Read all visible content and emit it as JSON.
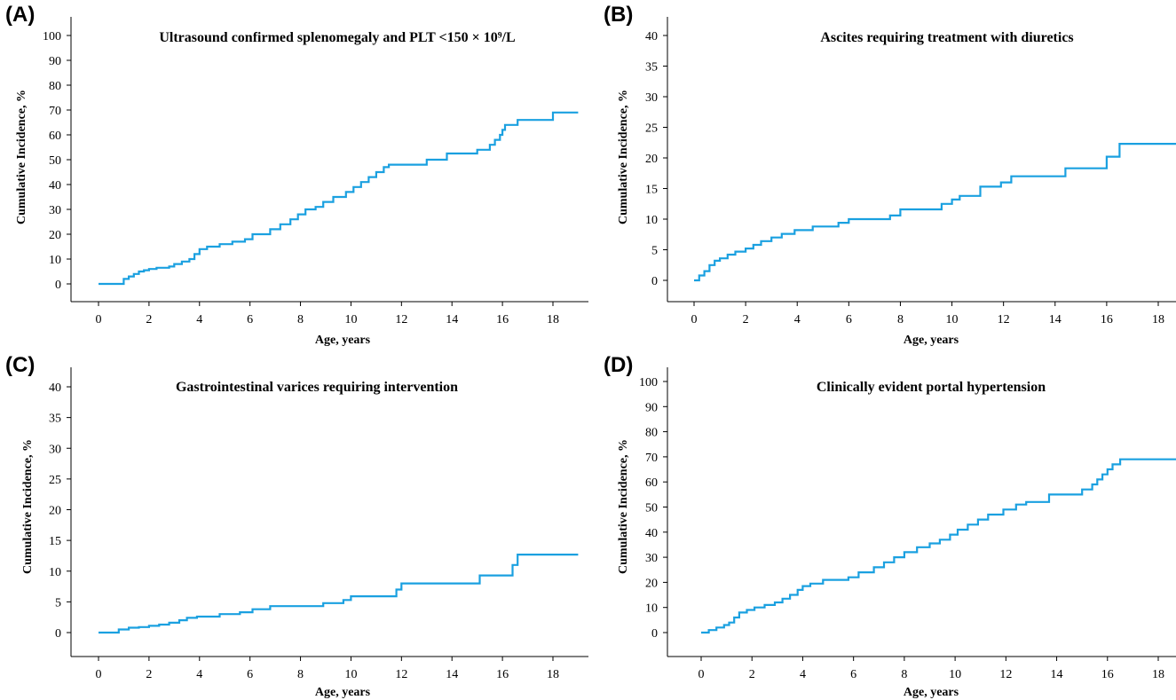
{
  "colors": {
    "series": "#1AA0E0",
    "axis": "#000000"
  },
  "chart_data": [
    {
      "panel": "(A)",
      "type": "line",
      "step": true,
      "title": "Ultrasound confirmed splenomegaly and PLT <150 × 10⁹/L",
      "xlabel": "Age, years",
      "ylabel": "Cumulative Incidence, %",
      "xlim": [
        -1,
        19
      ],
      "ylim": [
        0,
        100
      ],
      "xticks": [
        0,
        2,
        4,
        6,
        8,
        10,
        12,
        14,
        16,
        18
      ],
      "yticks": [
        0,
        10,
        20,
        30,
        40,
        50,
        60,
        70,
        80,
        90,
        100
      ],
      "grid": false,
      "series": [
        {
          "x": [
            0,
            1.0,
            1.2,
            1.4,
            1.6,
            1.8,
            2.0,
            2.3,
            2.8,
            3.0,
            3.3,
            3.6,
            3.8,
            4.0,
            4.3,
            4.8,
            5.3,
            5.8,
            6.1,
            6.8,
            7.2,
            7.6,
            7.9,
            8.2,
            8.6,
            8.9,
            9.3,
            9.8,
            10.1,
            10.4,
            10.7,
            11.0,
            11.3,
            11.5,
            13.0,
            13.8,
            15.0,
            15.5,
            15.7,
            15.9,
            16.0,
            16.1,
            16.3,
            16.6,
            18.0,
            19.0
          ],
          "y": [
            0,
            2,
            3,
            4,
            5,
            5.5,
            6,
            6.5,
            7,
            8,
            9,
            10,
            12,
            14,
            15,
            16,
            17,
            18,
            20,
            22,
            24,
            26,
            28,
            30,
            31,
            33,
            35,
            37,
            39,
            41,
            43,
            45,
            47,
            48,
            50,
            52.5,
            54,
            56,
            58,
            60,
            62,
            64,
            64,
            66,
            69,
            69
          ]
        }
      ]
    },
    {
      "panel": "(B)",
      "type": "line",
      "step": true,
      "title": "Ascites requiring treatment with diuretics",
      "xlabel": "Age, years",
      "ylabel": "Cumulative Incidence, %",
      "xlim": [
        -1,
        19
      ],
      "ylim": [
        0,
        40
      ],
      "xticks": [
        0,
        2,
        4,
        6,
        8,
        10,
        12,
        14,
        16,
        18
      ],
      "yticks": [
        0,
        5,
        10,
        15,
        20,
        25,
        30,
        35,
        40
      ],
      "grid": false,
      "series": [
        {
          "x": [
            0,
            0.2,
            0.4,
            0.6,
            0.8,
            1.0,
            1.3,
            1.6,
            2.0,
            2.3,
            2.6,
            3.0,
            3.4,
            3.9,
            4.6,
            5.6,
            6.0,
            7.6,
            8.0,
            9.6,
            10.0,
            10.3,
            11.1,
            11.9,
            12.3,
            14.4,
            16.0,
            16.5,
            19.0
          ],
          "y": [
            0,
            0.8,
            1.5,
            2.5,
            3.2,
            3.6,
            4.2,
            4.7,
            5.2,
            5.8,
            6.4,
            7.0,
            7.6,
            8.2,
            8.8,
            9.4,
            10.0,
            10.6,
            11.6,
            12.5,
            13.2,
            13.8,
            15.3,
            16.0,
            17.0,
            18.3,
            20.2,
            22.3,
            22.3
          ]
        }
      ]
    },
    {
      "panel": "(C)",
      "type": "line",
      "step": true,
      "title": "Gastrointestinal varices requiring intervention",
      "xlabel": "Age, years",
      "ylabel": "Cumulative Incidence, %",
      "xlim": [
        -1,
        19
      ],
      "ylim": [
        0,
        40
      ],
      "xticks": [
        0,
        2,
        4,
        6,
        8,
        10,
        12,
        14,
        16,
        18
      ],
      "yticks": [
        0,
        5,
        10,
        15,
        20,
        25,
        30,
        35,
        40
      ],
      "grid": false,
      "series": [
        {
          "x": [
            0,
            0.8,
            1.2,
            1.6,
            2.0,
            2.4,
            2.8,
            3.2,
            3.5,
            3.9,
            4.8,
            5.6,
            6.1,
            6.8,
            8.9,
            9.7,
            10.0,
            11.8,
            12.0,
            15.1,
            16.4,
            16.6,
            19.0
          ],
          "y": [
            0,
            0.5,
            0.8,
            0.9,
            1.1,
            1.3,
            1.6,
            2.0,
            2.4,
            2.6,
            3.0,
            3.3,
            3.8,
            4.3,
            4.8,
            5.3,
            5.9,
            7.0,
            8.0,
            9.3,
            11.0,
            12.7,
            12.7
          ]
        }
      ]
    },
    {
      "panel": "(D)",
      "type": "line",
      "step": true,
      "title": "Clinically evident portal hypertension",
      "xlabel": "Age, years",
      "ylabel": "Cumulative Incidence, %",
      "xlim": [
        -1,
        19
      ],
      "ylim": [
        0,
        100
      ],
      "xticks": [
        0,
        2,
        4,
        6,
        8,
        10,
        12,
        14,
        16,
        18
      ],
      "yticks": [
        0,
        10,
        20,
        30,
        40,
        50,
        60,
        70,
        80,
        90,
        100
      ],
      "grid": false,
      "series": [
        {
          "x": [
            0,
            0.3,
            0.6,
            0.9,
            1.1,
            1.3,
            1.5,
            1.8,
            2.1,
            2.5,
            2.9,
            3.2,
            3.5,
            3.8,
            4.0,
            4.3,
            4.8,
            5.8,
            6.2,
            6.8,
            7.2,
            7.6,
            8.0,
            8.5,
            9.0,
            9.4,
            9.8,
            10.1,
            10.5,
            10.9,
            11.3,
            11.9,
            12.4,
            12.8,
            13.7,
            15.0,
            15.4,
            15.6,
            15.8,
            16.0,
            16.2,
            16.5,
            19.0
          ],
          "y": [
            0,
            1,
            2,
            3,
            4,
            6,
            8,
            9,
            10,
            11,
            12,
            13.5,
            15,
            17,
            18.5,
            19.5,
            21,
            22,
            24,
            26,
            28,
            30,
            32,
            34,
            35.5,
            37,
            39,
            41,
            43,
            45,
            47,
            49,
            51,
            52,
            55,
            57,
            59,
            61,
            63,
            65,
            67,
            69,
            69
          ]
        }
      ]
    }
  ]
}
